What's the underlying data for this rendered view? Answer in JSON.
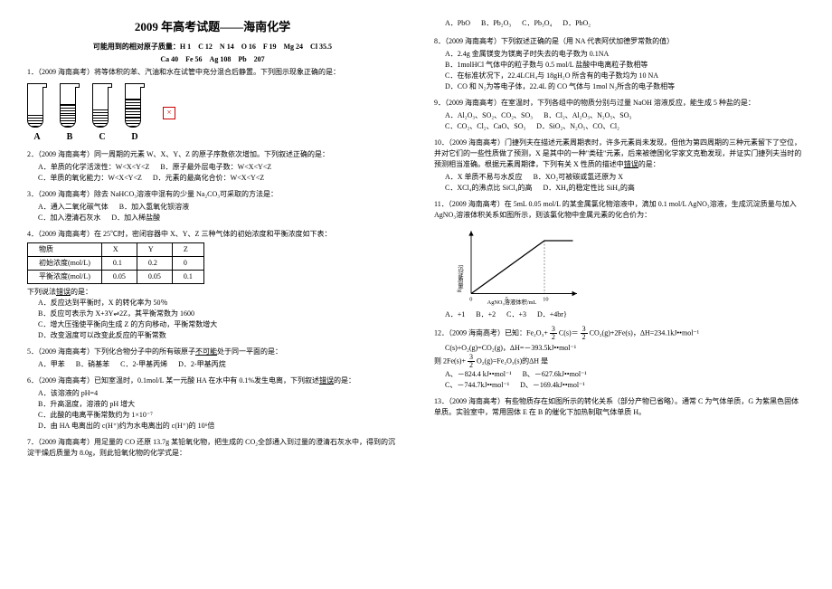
{
  "title": "2009 年高考试题——海南化学",
  "atomic_masses_label": "可能用到的相对原子质量：H 1　C 12　N 14　O 16　F 19　Mg 24　Cl 35.5",
  "atomic_masses_line2": "Ca 40　Fe 56　Ag 108　Pb　207",
  "q1": {
    "text": "1．（2009 海南高考）将等体积的苯、汽油和水在试管中充分混合后静置。下列图示现象正确的是：",
    "tubes": [
      {
        "label": "A",
        "layers": [
          {
            "h": 14,
            "top": false
          }
        ]
      },
      {
        "label": "B",
        "layers": [
          {
            "h": 14,
            "top": false
          },
          {
            "h": 10,
            "top": true
          }
        ]
      },
      {
        "label": "C",
        "layers": [
          {
            "h": 20,
            "top": false
          }
        ]
      },
      {
        "label": "D",
        "layers": [
          {
            "h": 10,
            "top": false
          },
          {
            "h": 10,
            "top": true
          },
          {
            "h": 10,
            "top": true
          }
        ]
      }
    ]
  },
  "q2": {
    "text": "2．（2009 海南高考）同一周期的元素 W、X、Y、Z 的原子序数依次增加。下列叙述正确的是：",
    "optA": "A．单质的化学活泼性：W<X<Y<Z",
    "optB": "B．原子最外层电子数：W<X<Y<Z",
    "optC": "C．单质的氧化能力：W<X<Y<Z",
    "optD": "D．元素的最高化合价：W<X<Y<Z"
  },
  "q3": {
    "text": "3．（2009 海南高考）除去 NaHCO₃溶液中混有的少量 Na₂CO₃可采取的方法是：",
    "optA": "A．通入二氧化碳气体",
    "optB": "B．加入氢氧化钡溶液",
    "optC": "C．加入澄清石灰水",
    "optD": "D．加入稀盐酸"
  },
  "q4": {
    "text": "4．（2009 海南高考）在 25℃时，密闭容器中 X、Y、Z 三种气体的初始浓度和平衡浓度如下表：",
    "table": {
      "headers": [
        "物质",
        "X",
        "Y",
        "Z"
      ],
      "rows": [
        [
          "初始浓度(mol/L)",
          "0.1",
          "0.2",
          "0"
        ],
        [
          "平衡浓度(mol/L)",
          "0.05",
          "0.05",
          "0.1"
        ]
      ]
    },
    "sub": "下列说法错误的是：",
    "optA": "A．反应达到平衡时，X 的转化率为 50％",
    "optB": "B．反应可表示为 X+3Y⇌2Z，其平衡常数为 1600",
    "optC": "C．增大压强使平衡向生成 Z 的方向移动，平衡常数增大",
    "optD": "D．改变温度可以改变此反应的平衡常数"
  },
  "q5": {
    "text": "5．（2009 海南高考）下列化合物分子中的所有碳原子不可能处于同一平面的是：",
    "optA": "A．甲苯",
    "optB": "B．硝基苯",
    "optC": "C．2-甲基丙烯",
    "optD": "D．2-甲基丙烷"
  },
  "q6": {
    "text": "6．（2009 海南高考）已知室温时，0.1mol/L 某一元酸 HA 在水中有 0.1%发生电离，下列叙述错误的是：",
    "optA": "A．该溶液的 pH=4",
    "optB": "B．升高温度，溶液的 pH 增大",
    "optC": "C．此酸的电离平衡常数约为 1×10⁻⁷",
    "optD": "D．由 HA 电离出的 c(H⁺)约为水电离出的 c(H⁺)的 10⁶倍"
  },
  "q7": {
    "text": "7．（2009 海南高考）用足量的 CO 还原 13.7g 某铅氧化物，把生成的 CO₂全部通入到过量的澄清石灰水中，得到的沉淀干燥后质量为 8.0g，则此铅氧化物的化学式是："
  },
  "q7_opts": {
    "optA": "A．PbO",
    "optB": "B．Pb₂O₃",
    "optC": "C．Pb₃O₄",
    "optD": "D．PbO₂"
  },
  "q8": {
    "text": "8．（2009 海南高考）下列叙述正确的是（用 NA 代表阿伏加德罗常数的值）",
    "optA": "A．2.4g 金属镁变为镁离子时失去的电子数为 0.1NA",
    "optB": "B．1molHCl 气体中的粒子数与 0.5 mol/L 盐酸中电离粒子数相等",
    "optC": "C．在标准状况下，22.4LCH₄与 18gH₂O 所含有的电子数均为 10 NA",
    "optD": "D．CO 和 N₂为等电子体，22.4L 的 CO 气体与 1mol N₂所含的电子数相等"
  },
  "q9": {
    "text": "9．（2009 海南高考）在室温时，下列各组中的物质分别与过量 NaOH 溶液反应，能生成 5 种盐的是：",
    "optA": "A．Al₂O₃、SO₂、CO₂、SO₃",
    "optB": "B．Cl₂、Al₂O₃、N₂O₅、SO₃",
    "optC": "C．CO₂、Cl₂、CaO、SO₃",
    "optD": "D．SiO₂、N₂O₅、CO、Cl₂"
  },
  "q10": {
    "text": "10．（2009 海南高考）门捷列夫在描述元素周期表时，许多元素尚未发现，但他为第四周期的三种元素留下了空位，并对它们的一些性质做了预测，X 是其中的一种\"类硅\"元素，后来被德国化学家文克勒发现，并证实门捷列夫当时的预测相当准确。根据元素周期律，下列有关 X 性质的描述中错误的是：",
    "optA": "A．X 单质不易与水反应",
    "optB": "B．XO₂可被碳或氢还原为 X",
    "optC": "C．XCl₄的沸点比 SiCl₄的高",
    "optD": "D．XH₄的稳定性比 SiH₄的高"
  },
  "q11": {
    "text": "11．（2009 海南高考）在 5mL 0.05 mol/L 的某金属氯化物溶液中，滴加 0.1 mol/L AgNO₃溶液，生成沉淀质量与加入 AgNO₃溶液体积关系如图所示，则该氯化物中金属元素的化合价为：",
    "chart": {
      "xlabel": "AgNO₃溶液体积/mL",
      "ylabel": "沉淀质量/g",
      "xmax": 10,
      "plateau_x": 7.5,
      "line_color": "#000000"
    },
    "optA": "A．+1",
    "optB": "B．+2",
    "optC": "C．+3",
    "optD": "D．+4br}"
  },
  "q12": {
    "text_pre": "12．（2009 海南高考）已知：Fe₂O₃+",
    "text_mid1": "C(s)＝",
    "text_mid2": "CO₂(g)+2Fe(s)，ΔH=234.1kJ••mol⁻¹",
    "line2": "C(s)+O₂(g)=CO₂(g)，ΔH=－393.5kJ••mol⁻¹",
    "line3_pre": "则 2Fe(s)+",
    "line3_mid": "O₂(g)=Fe₂O₃(s)的ΔH 是",
    "optA": "A、－824.4 kJ••mol⁻¹",
    "optB": "B、－627.6kJ••mol⁻¹",
    "optC": "C、－744.7kJ••mol⁻¹",
    "optD": "D、－169.4kJ••mol⁻¹"
  },
  "q13": {
    "text": "13．（2009 海南高考）有些物质存在如图所示的转化关系（部分产物已省略）。通常 C 为气体单质，G 为紫黑色固体单质。实验室中，常用固体 E 在 B 的催化下加热制取气体单质 H。"
  }
}
